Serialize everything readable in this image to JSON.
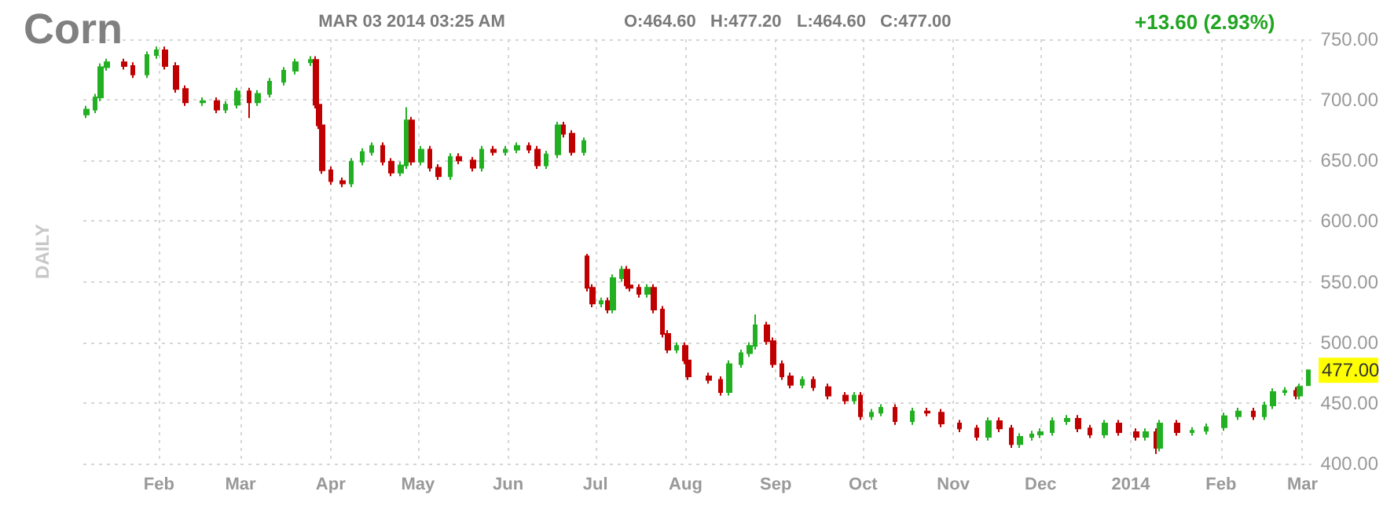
{
  "chart_data": {
    "type": "candlestick",
    "title": "Corn",
    "ylabel": "DAILY",
    "annotations": [
      "MAR 03 2014 03:25 AM",
      "O:464.60",
      "H:477.20",
      "L:464.60",
      "C:477.00",
      "+13.60 (2.93%)",
      {
        "text": "477.00",
        "x": "2014-03-03",
        "y": 477
      }
    ],
    "colors": [
      "#22b022",
      "#22b022",
      "#22b022",
      "#22b022",
      "#c00000",
      "#c00000",
      "#22b022",
      "#22b022",
      "#c00000",
      "#c00000",
      "#c00000",
      "#22b022",
      "#c00000",
      "#22b022",
      "#22b022",
      "#c00000",
      "#22b022",
      "#22b022",
      "#22b022",
      "#22b022",
      "#22b022",
      "#c00000",
      "#c00000",
      "#c00000",
      "#c00000",
      "#c00000",
      "#22b022",
      "#22b022",
      "#22b022",
      "#c00000",
      "#c00000",
      "#22b022",
      "#22b022",
      "#c00000",
      "#22b022",
      "#c00000",
      "#c00000",
      "#22b022",
      "#c00000",
      "#c00000",
      "#22b022",
      "#c00000",
      "#22b022",
      "#22b022",
      "#c00000",
      "#c00000",
      "#22b022",
      "#22b022",
      "#c00000",
      "#c00000",
      "#22b022",
      "#c00000",
      "#c00000",
      "#22b022",
      "#c00000",
      "#22b022",
      "#22b022",
      "#c00000",
      "#c00000",
      "#c00000",
      "#22b022",
      "#c00000",
      "#c00000",
      "#c00000",
      "#22b022",
      "#c00000",
      "#c00000",
      "#c00000",
      "#c00000",
      "#22b022",
      "#22b022",
      "#22b022",
      "#22b022",
      "#c00000",
      "#c00000",
      "#c00000",
      "#c00000",
      "#22b022",
      "#c00000",
      "#c00000",
      "#c00000",
      "#22b022",
      "#c00000",
      "#22b022",
      "#22b022",
      "#c00000",
      "#22b022",
      "#c00000",
      "#c00000",
      "#c00000",
      "#c00000",
      "#22b022",
      "#c00000",
      "#c00000",
      "#22b022",
      "#22b022",
      "#22b022",
      "#22b022",
      "#22b022",
      "#c00000",
      "#c00000",
      "#22b022",
      "#c00000",
      "#c00000",
      "#22b022",
      "#c00000",
      "#22b022",
      "#c00000",
      "#22b022",
      "#22b022",
      "#22b022",
      "#22b022",
      "#c00000",
      "#22b022",
      "#22b022",
      "#22b022",
      "#c00000",
      "#22b022",
      "#22b022"
    ],
    "x": [
      "2013-01-07",
      "2013-01-10",
      "2013-01-12",
      "2013-01-14",
      "2013-01-20",
      "2013-01-23",
      "2013-01-28",
      "2013-01-31",
      "2013-02-03",
      "2013-02-07",
      "2013-02-10",
      "2013-02-16",
      "2013-02-21",
      "2013-02-24",
      "2013-02-28",
      "2013-03-04",
      "2013-03-07",
      "2013-03-11",
      "2013-03-16",
      "2013-03-20",
      "2013-03-25",
      "2013-03-27",
      "2013-03-28",
      "2013-03-29",
      "2013-04-01",
      "2013-04-05",
      "2013-04-08",
      "2013-04-12",
      "2013-04-15",
      "2013-04-19",
      "2013-04-22",
      "2013-04-25",
      "2013-04-27",
      "2013-04-29",
      "2013-05-02",
      "2013-05-05",
      "2013-05-08",
      "2013-05-12",
      "2013-05-15",
      "2013-05-20",
      "2013-05-23",
      "2013-05-27",
      "2013-05-31",
      "2013-06-04",
      "2013-06-08",
      "2013-06-11",
      "2013-06-14",
      "2013-06-18",
      "2013-06-20",
      "2013-06-23",
      "2013-06-27",
      "2013-06-28",
      "2013-06-30",
      "2013-07-03",
      "2013-07-05",
      "2013-07-07",
      "2013-07-10",
      "2013-07-12",
      "2013-07-13",
      "2013-07-16",
      "2013-07-19",
      "2013-07-21",
      "2013-07-24",
      "2013-07-26",
      "2013-07-29",
      "2013-08-01",
      "2013-08-02",
      "2013-08-09",
      "2013-08-13",
      "2013-08-16",
      "2013-08-20",
      "2013-08-23",
      "2013-08-25",
      "2013-08-29",
      "2013-08-31",
      "2013-09-03",
      "2013-09-06",
      "2013-09-10",
      "2013-09-14",
      "2013-09-19",
      "2013-09-25",
      "2013-09-28",
      "2013-09-30",
      "2013-10-04",
      "2013-10-07",
      "2013-10-12",
      "2013-10-18",
      "2013-10-23",
      "2013-10-28",
      "2013-11-03",
      "2013-11-09",
      "2013-11-13",
      "2013-11-17",
      "2013-11-21",
      "2013-11-24",
      "2013-11-28",
      "2013-12-01",
      "2013-12-05",
      "2013-12-10",
      "2013-12-14",
      "2013-12-18",
      "2013-12-23",
      "2013-12-28",
      "2014-01-03",
      "2014-01-06",
      "2014-01-10",
      "2014-01-11",
      "2014-01-17",
      "2014-01-22",
      "2014-01-27",
      "2014-02-02",
      "2014-02-07",
      "2014-02-12",
      "2014-02-16",
      "2014-02-19",
      "2014-02-23",
      "2014-02-27",
      "2014-02-28",
      "2014-03-03"
    ],
    "ohlc": [
      [
        688,
        695,
        685,
        692
      ],
      [
        692,
        705,
        689,
        702
      ],
      [
        702,
        730,
        699,
        727
      ],
      [
        727,
        734,
        724,
        731
      ],
      [
        731,
        734,
        725,
        728
      ],
      [
        728,
        731,
        718,
        721
      ],
      [
        721,
        740,
        718,
        737
      ],
      [
        737,
        744,
        734,
        741
      ],
      [
        741,
        744,
        725,
        728
      ],
      [
        728,
        731,
        706,
        709
      ],
      [
        709,
        712,
        695,
        698
      ],
      [
        698,
        702,
        695,
        699
      ],
      [
        699,
        702,
        689,
        692
      ],
      [
        692,
        699,
        689,
        696
      ],
      [
        696,
        710,
        693,
        707
      ],
      [
        707,
        710,
        685,
        698
      ],
      [
        698,
        708,
        695,
        705
      ],
      [
        705,
        718,
        702,
        715
      ],
      [
        715,
        727,
        712,
        724
      ],
      [
        724,
        734,
        721,
        731
      ],
      [
        731,
        736,
        728,
        733
      ],
      [
        733,
        736,
        693,
        696
      ],
      [
        696,
        699,
        676,
        679
      ],
      [
        679,
        682,
        639,
        642
      ],
      [
        642,
        645,
        630,
        633
      ],
      [
        633,
        636,
        628,
        631
      ],
      [
        631,
        652,
        628,
        649
      ],
      [
        649,
        660,
        646,
        657
      ],
      [
        657,
        665,
        654,
        662
      ],
      [
        662,
        665,
        646,
        649
      ],
      [
        649,
        652,
        637,
        640
      ],
      [
        640,
        649,
        637,
        646
      ],
      [
        646,
        694,
        643,
        683
      ],
      [
        683,
        686,
        646,
        649
      ],
      [
        649,
        662,
        646,
        659
      ],
      [
        659,
        662,
        641,
        644
      ],
      [
        644,
        647,
        634,
        637
      ],
      [
        637,
        656,
        634,
        653
      ],
      [
        653,
        656,
        647,
        650
      ],
      [
        650,
        653,
        641,
        644
      ],
      [
        644,
        662,
        641,
        659
      ],
      [
        659,
        662,
        654,
        657
      ],
      [
        657,
        662,
        654,
        659
      ],
      [
        659,
        665,
        656,
        662
      ],
      [
        662,
        665,
        656,
        659
      ],
      [
        659,
        662,
        643,
        646
      ],
      [
        646,
        658,
        643,
        655
      ],
      [
        655,
        682,
        652,
        679
      ],
      [
        679,
        682,
        669,
        672
      ],
      [
        672,
        675,
        654,
        657
      ],
      [
        657,
        669,
        654,
        666
      ],
      [
        571,
        573,
        542,
        545
      ],
      [
        545,
        548,
        529,
        532
      ],
      [
        532,
        537,
        529,
        534
      ],
      [
        534,
        537,
        524,
        527
      ],
      [
        527,
        556,
        524,
        553
      ],
      [
        553,
        563,
        550,
        560
      ],
      [
        560,
        563,
        544,
        547
      ],
      [
        547,
        550,
        542,
        545
      ],
      [
        545,
        548,
        537,
        540
      ],
      [
        540,
        548,
        537,
        545
      ],
      [
        545,
        548,
        524,
        527
      ],
      [
        527,
        530,
        504,
        507
      ],
      [
        507,
        510,
        491,
        494
      ],
      [
        494,
        500,
        491,
        497
      ],
      [
        497,
        500,
        482,
        485
      ],
      [
        485,
        488,
        469,
        472
      ],
      [
        472,
        475,
        466,
        469
      ],
      [
        469,
        472,
        456,
        459
      ],
      [
        459,
        485,
        456,
        482
      ],
      [
        482,
        494,
        479,
        491
      ],
      [
        491,
        500,
        488,
        497
      ],
      [
        497,
        523,
        494,
        514
      ],
      [
        514,
        517,
        498,
        501
      ],
      [
        501,
        504,
        479,
        482
      ],
      [
        482,
        485,
        469,
        472
      ],
      [
        472,
        475,
        462,
        465
      ],
      [
        465,
        472,
        462,
        469
      ],
      [
        469,
        472,
        460,
        463
      ],
      [
        463,
        466,
        453,
        456
      ],
      [
        456,
        459,
        449,
        452
      ],
      [
        452,
        459,
        449,
        456
      ],
      [
        456,
        459,
        436,
        439
      ],
      [
        439,
        445,
        436,
        442
      ],
      [
        442,
        449,
        439,
        446
      ],
      [
        446,
        449,
        432,
        435
      ],
      [
        435,
        446,
        432,
        443
      ],
      [
        443,
        446,
        439,
        442
      ],
      [
        442,
        445,
        430,
        433
      ],
      [
        433,
        436,
        426,
        429
      ],
      [
        429,
        432,
        419,
        422
      ],
      [
        422,
        438,
        419,
        435
      ],
      [
        435,
        438,
        426,
        429
      ],
      [
        429,
        432,
        413,
        416
      ],
      [
        416,
        425,
        413,
        422
      ],
      [
        422,
        427,
        419,
        424
      ],
      [
        424,
        429,
        421,
        426
      ],
      [
        426,
        438,
        423,
        435
      ],
      [
        435,
        440,
        432,
        437
      ],
      [
        437,
        440,
        426,
        429
      ],
      [
        429,
        432,
        421,
        424
      ],
      [
        424,
        436,
        421,
        433
      ],
      [
        433,
        436,
        423,
        426
      ],
      [
        426,
        429,
        419,
        422
      ],
      [
        422,
        429,
        419,
        426
      ],
      [
        426,
        429,
        408,
        413
      ],
      [
        413,
        436,
        410,
        433
      ],
      [
        433,
        436,
        423,
        426
      ],
      [
        426,
        430,
        423,
        427
      ],
      [
        427,
        433,
        424,
        430
      ],
      [
        430,
        442,
        427,
        439
      ],
      [
        439,
        446,
        436,
        443
      ],
      [
        443,
        446,
        436,
        439
      ],
      [
        439,
        451,
        436,
        448
      ],
      [
        448,
        462,
        445,
        459
      ],
      [
        459,
        463,
        456,
        460
      ],
      [
        460,
        463,
        453,
        456
      ],
      [
        456,
        466,
        453,
        463.4
      ],
      [
        464.6,
        477.2,
        464.6,
        477
      ]
    ],
    "xlim": [
      "2013-01-06",
      "2014-03-04"
    ],
    "xticks": [
      {
        "value": "2013-02-01",
        "label": "Feb"
      },
      {
        "value": "2013-03-01",
        "label": "Mar"
      },
      {
        "value": "2013-04-01",
        "label": "Apr"
      },
      {
        "value": "2013-05-01",
        "label": "May"
      },
      {
        "value": "2013-06-01",
        "label": "Jun"
      },
      {
        "value": "2013-07-01",
        "label": "Jul"
      },
      {
        "value": "2013-08-01",
        "label": "Aug"
      },
      {
        "value": "2013-09-01",
        "label": "Sep"
      },
      {
        "value": "2013-10-01",
        "label": "Oct"
      },
      {
        "value": "2013-11-01",
        "label": "Nov"
      },
      {
        "value": "2013-12-01",
        "label": "Dec"
      },
      {
        "value": "2014-01-01",
        "label": "2014"
      },
      {
        "value": "2014-02-01",
        "label": "Feb"
      },
      {
        "value": "2014-03-01",
        "label": "Mar"
      }
    ],
    "ylim": [
      400,
      750
    ],
    "yticks": [
      {
        "value": 400,
        "label": "400.00"
      },
      {
        "value": 450,
        "label": "450.00"
      },
      {
        "value": 500,
        "label": "500.00"
      },
      {
        "value": 550,
        "label": "550.00"
      },
      {
        "value": 600,
        "label": "600.00"
      },
      {
        "value": 650,
        "label": "650.00"
      },
      {
        "value": 700,
        "label": "700.00"
      },
      {
        "value": 750,
        "label": "750.00"
      }
    ],
    "grid": true
  }
}
